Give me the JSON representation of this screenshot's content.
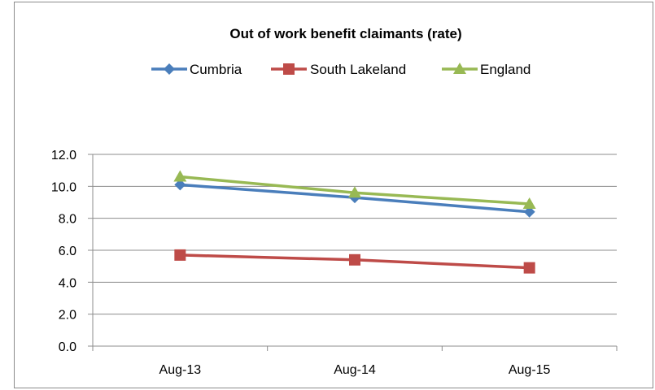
{
  "chart_data": {
    "type": "line",
    "title": "Out of work benefit claimants (rate)",
    "categories": [
      "Aug-13",
      "Aug-14",
      "Aug-15"
    ],
    "series": [
      {
        "name": "Cumbria",
        "values": [
          10.1,
          9.3,
          8.4
        ],
        "color": "#4a7ebb",
        "marker": "diamond"
      },
      {
        "name": "South Lakeland",
        "values": [
          5.7,
          5.4,
          4.9
        ],
        "color": "#be4b48",
        "marker": "square"
      },
      {
        "name": "England",
        "values": [
          10.6,
          9.6,
          8.9
        ],
        "color": "#98b954",
        "marker": "triangle"
      }
    ],
    "ylim": [
      0,
      12
    ],
    "yticks": [
      "0.0",
      "2.0",
      "4.0",
      "6.0",
      "8.0",
      "10.0",
      "12.0"
    ],
    "grid": true,
    "legend": "top"
  }
}
